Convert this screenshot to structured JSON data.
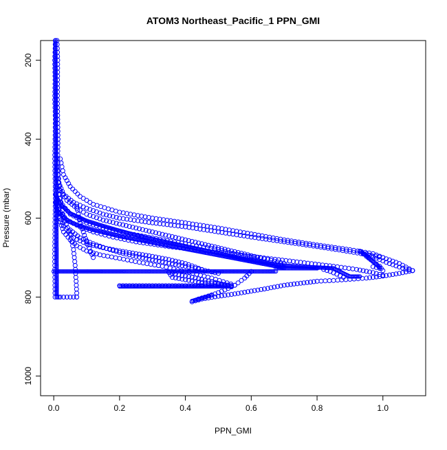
{
  "chart_data": {
    "type": "scatter",
    "title": "ATOM3 Northeast_Pacific_1 PPN_GMI",
    "xlabel": "PPN_GMI",
    "ylabel": "Pressure (mbar)",
    "xlim": [
      -0.04,
      1.13
    ],
    "ylim": [
      1050,
      150
    ],
    "y_reversed": true,
    "x_ticks": [
      0.0,
      0.2,
      0.4,
      0.6,
      0.8,
      1.0
    ],
    "x_tick_labels": [
      "0.0",
      "0.2",
      "0.4",
      "0.6",
      "0.8",
      "1.0"
    ],
    "y_ticks": [
      200,
      400,
      600,
      800,
      1000
    ],
    "y_tick_labels": [
      "200",
      "400",
      "600",
      "800",
      "1000"
    ],
    "grid": false,
    "marker": "open-circle",
    "series_color": "#0000ff",
    "series": [
      {
        "segments": [
          {
            "x": [
              0.005,
              0.003,
              0.004,
              0.003,
              0.005,
              0.004,
              0.003,
              0.004,
              0.005,
              0.004,
              0.003,
              0.004
            ],
            "y": [
              150,
              200,
              250,
              300,
              350,
              400,
              450,
              500,
              550,
              600,
              700,
              800
            ]
          },
          {
            "x": [
              0.01,
              0.012,
              0.011,
              0.013,
              0.012,
              0.015,
              0.02,
              0.03,
              0.05,
              0.06,
              0.065,
              0.068,
              0.07,
              0.07
            ],
            "y": [
              150,
              200,
              300,
              400,
              450,
              500,
              550,
              600,
              640,
              680,
              720,
              760,
              790,
              800
            ]
          },
          {
            "x": [
              0.07,
              0.06,
              0.05,
              0.04,
              0.03,
              0.02,
              0.015,
              0.01
            ],
            "y": [
              800,
              800,
              800,
              800,
              800,
              800,
              800,
              800
            ]
          },
          {
            "x": [
              0.02,
              0.03,
              0.05,
              0.08,
              0.12,
              0.2,
              0.3,
              0.4,
              0.5,
              0.6,
              0.7,
              0.8,
              0.9,
              0.97,
              1.0
            ],
            "y": [
              450,
              490,
              520,
              545,
              565,
              585,
              600,
              612,
              625,
              640,
              655,
              668,
              680,
              690,
              700
            ]
          },
          {
            "x": [
              0.01,
              0.02,
              0.04,
              0.07,
              0.1,
              0.15,
              0.2,
              0.25,
              0.3,
              0.35,
              0.4,
              0.45,
              0.5,
              0.55,
              0.6,
              0.65,
              0.7
            ],
            "y": [
              500,
              530,
              555,
              575,
              590,
              605,
              615,
              625,
              635,
              645,
              655,
              665,
              675,
              685,
              695,
              705,
              715
            ]
          },
          {
            "x": [
              0.01,
              0.02,
              0.05,
              0.1,
              0.15,
              0.2,
              0.3,
              0.4,
              0.5,
              0.6,
              0.65
            ],
            "y": [
              520,
              560,
              590,
              612,
              625,
              635,
              650,
              665,
              680,
              700,
              715
            ]
          },
          {
            "x": [
              0.01,
              0.015,
              0.03,
              0.06,
              0.1,
              0.15,
              0.2,
              0.3,
              0.4,
              0.5,
              0.6,
              0.7,
              0.8,
              0.9,
              1.0,
              1.05,
              1.09
            ],
            "y": [
              470,
              510,
              540,
              560,
              575,
              590,
              600,
              612,
              622,
              635,
              648,
              660,
              672,
              685,
              700,
              715,
              733
            ]
          },
          {
            "x": [
              0.01,
              0.02,
              0.04,
              0.08,
              0.12,
              0.18,
              0.25,
              0.35,
              0.45,
              0.55,
              0.65,
              0.75,
              0.85,
              0.92,
              0.97,
              1.0
            ],
            "y": [
              560,
              585,
              605,
              622,
              635,
              648,
              660,
              672,
              682,
              692,
              702,
              712,
              722,
              730,
              738,
              745
            ]
          },
          {
            "x": [
              1.09,
              1.05,
              1.0,
              0.95,
              0.9,
              0.85,
              0.8,
              0.75,
              0.7,
              0.65,
              0.6,
              0.55,
              0.5,
              0.45,
              0.42
            ],
            "y": [
              733,
              740,
              747,
              752,
              755,
              758,
              760,
              765,
              770,
              778,
              785,
              792,
              798,
              805,
              812
            ]
          },
          {
            "x": [
              0.015,
              0.02,
              0.03,
              0.05,
              0.07,
              0.1,
              0.14,
              0.2,
              0.26,
              0.33,
              0.4,
              0.48,
              0.55
            ],
            "y": [
              580,
              610,
              635,
              655,
              670,
              683,
              693,
              702,
              712,
              722,
              735,
              752,
              770
            ]
          },
          {
            "x": [
              0.01,
              0.03,
              0.06,
              0.1,
              0.15,
              0.2,
              0.25,
              0.3,
              0.35,
              0.4,
              0.45
            ],
            "y": [
              580,
              620,
              650,
              665,
              675,
              683,
              690,
              697,
              705,
              715,
              730
            ]
          },
          {
            "x": [
              0.2,
              0.24,
              0.28,
              0.32,
              0.36,
              0.4,
              0.44,
              0.48,
              0.52,
              0.54
            ],
            "y": [
              771,
              771,
              771,
              771,
              771,
              771,
              771,
              771,
              771,
              771
            ]
          },
          {
            "x": [
              0.54,
              0.5,
              0.46,
              0.42,
              0.38,
              0.35,
              0.36,
              0.4,
              0.44,
              0.48,
              0.52,
              0.54
            ],
            "y": [
              771,
              765,
              757,
              750,
              744,
              738,
              750,
              756,
              762,
              766,
              769,
              771
            ]
          },
          {
            "x": [
              0.6,
              0.58,
              0.55,
              0.52,
              0.49,
              0.46,
              0.44
            ],
            "y": [
              735,
              752,
              770,
              782,
              792,
              800,
              805
            ]
          },
          {
            "x": [
              0.93,
              0.95,
              0.97,
              0.99,
              1.0,
              0.99,
              0.97
            ],
            "y": [
              685,
              697,
              710,
              722,
              733,
              727,
              723
            ]
          },
          {
            "x": [
              0.95,
              0.97,
              0.99,
              1.01,
              1.03,
              1.05,
              1.07,
              1.09
            ],
            "y": [
              690,
              698,
              705,
              712,
              718,
              724,
              729,
              733
            ]
          },
          {
            "x": [
              0.88,
              0.86,
              0.84,
              0.82
            ],
            "y": [
              750,
              742,
              735,
              730
            ]
          },
          {
            "x": [
              0.12,
              0.1,
              0.09,
              0.08,
              0.075,
              0.07
            ],
            "y": [
              700,
              660,
              635,
              612,
              590,
              570
            ]
          },
          {
            "x": [
              0.05,
              0.08,
              0.12,
              0.16,
              0.2,
              0.25,
              0.3,
              0.35,
              0.4,
              0.45,
              0.5
            ],
            "y": [
              630,
              650,
              665,
              677,
              687,
              697,
              706,
              714,
              722,
              731,
              740
            ]
          }
        ]
      },
      {
        "segments": [
          {
            "x": [
              0.0,
              0.1,
              0.2,
              0.3,
              0.4,
              0.5,
              0.6,
              0.675
            ],
            "y": [
              735,
              735,
              735,
              735,
              735,
              735,
              735,
              735
            ]
          },
          {
            "x": [
              0.675,
              0.7,
              0.75,
              0.8,
              0.8
            ],
            "y": [
              727,
              727,
              727,
              727,
              727
            ]
          },
          {
            "x": [
              0.2,
              0.25,
              0.3,
              0.35,
              0.4,
              0.45,
              0.5,
              0.54
            ],
            "y": [
              773,
              773,
              773,
              773,
              773,
              773,
              773,
              773
            ]
          },
          {
            "x": [
              0.42,
              0.44,
              0.46,
              0.48
            ],
            "y": [
              810,
              805,
              800,
              795
            ]
          },
          {
            "x": [
              0.005,
              0.006,
              0.007,
              0.008,
              0.009
            ],
            "y": [
              150,
              300,
              450,
              600,
              800
            ]
          },
          {
            "x": [
              0.005,
              0.02,
              0.05,
              0.1,
              0.15,
              0.2,
              0.25,
              0.3,
              0.35,
              0.4,
              0.45,
              0.5,
              0.55,
              0.6,
              0.65,
              0.7,
              0.75,
              0.8,
              0.85,
              0.88,
              0.9,
              0.93
            ],
            "y": [
              540,
              565,
              588,
              607,
              620,
              632,
              643,
              653,
              662,
              671,
              680,
              689,
              698,
              707,
              714,
              720,
              723,
              725,
              727,
              740,
              748,
              748
            ]
          },
          {
            "x": [
              0.005,
              0.01,
              0.03,
              0.05,
              0.08,
              0.12,
              0.16,
              0.2,
              0.25,
              0.3,
              0.35,
              0.4,
              0.45,
              0.5,
              0.55,
              0.6,
              0.65,
              0.7
            ],
            "y": [
              560,
              580,
              598,
              610,
              620,
              630,
              638,
              646,
              654,
              662,
              670,
              678,
              686,
              694,
              702,
              710,
              718,
              726
            ]
          },
          {
            "x": [
              0.93,
              0.95,
              0.97,
              0.99
            ],
            "y": [
              683,
              695,
              710,
              725
            ]
          }
        ]
      }
    ],
    "series_styles": [
      {
        "marker_radius": 3.0,
        "sampling": 6
      },
      {
        "marker_radius": 2.6,
        "sampling": 2
      }
    ]
  }
}
